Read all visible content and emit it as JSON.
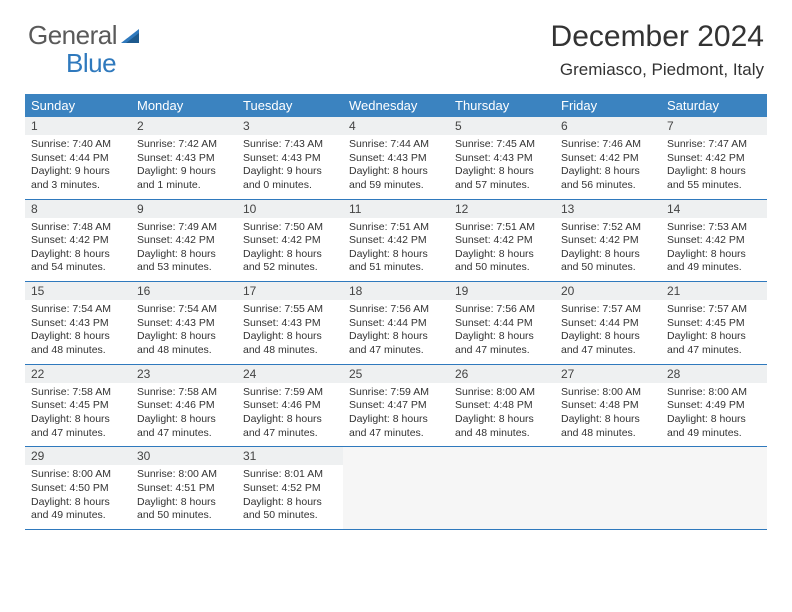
{
  "logo": {
    "general": "General",
    "blue": "Blue"
  },
  "title": "December 2024",
  "location": "Gremiasco, Piedmont, Italy",
  "colors": {
    "header_bg": "#3b83c0",
    "header_text": "#ffffff",
    "daynum_bg": "#eef0f1",
    "rule": "#2f79bd",
    "logo_gray": "#5a5a5a",
    "logo_blue": "#2f79bd"
  },
  "weekdays": [
    "Sunday",
    "Monday",
    "Tuesday",
    "Wednesday",
    "Thursday",
    "Friday",
    "Saturday"
  ],
  "weeks": [
    [
      {
        "n": "1",
        "sunrise": "Sunrise: 7:40 AM",
        "sunset": "Sunset: 4:44 PM",
        "daylight": "Daylight: 9 hours and 3 minutes."
      },
      {
        "n": "2",
        "sunrise": "Sunrise: 7:42 AM",
        "sunset": "Sunset: 4:43 PM",
        "daylight": "Daylight: 9 hours and 1 minute."
      },
      {
        "n": "3",
        "sunrise": "Sunrise: 7:43 AM",
        "sunset": "Sunset: 4:43 PM",
        "daylight": "Daylight: 9 hours and 0 minutes."
      },
      {
        "n": "4",
        "sunrise": "Sunrise: 7:44 AM",
        "sunset": "Sunset: 4:43 PM",
        "daylight": "Daylight: 8 hours and 59 minutes."
      },
      {
        "n": "5",
        "sunrise": "Sunrise: 7:45 AM",
        "sunset": "Sunset: 4:43 PM",
        "daylight": "Daylight: 8 hours and 57 minutes."
      },
      {
        "n": "6",
        "sunrise": "Sunrise: 7:46 AM",
        "sunset": "Sunset: 4:42 PM",
        "daylight": "Daylight: 8 hours and 56 minutes."
      },
      {
        "n": "7",
        "sunrise": "Sunrise: 7:47 AM",
        "sunset": "Sunset: 4:42 PM",
        "daylight": "Daylight: 8 hours and 55 minutes."
      }
    ],
    [
      {
        "n": "8",
        "sunrise": "Sunrise: 7:48 AM",
        "sunset": "Sunset: 4:42 PM",
        "daylight": "Daylight: 8 hours and 54 minutes."
      },
      {
        "n": "9",
        "sunrise": "Sunrise: 7:49 AM",
        "sunset": "Sunset: 4:42 PM",
        "daylight": "Daylight: 8 hours and 53 minutes."
      },
      {
        "n": "10",
        "sunrise": "Sunrise: 7:50 AM",
        "sunset": "Sunset: 4:42 PM",
        "daylight": "Daylight: 8 hours and 52 minutes."
      },
      {
        "n": "11",
        "sunrise": "Sunrise: 7:51 AM",
        "sunset": "Sunset: 4:42 PM",
        "daylight": "Daylight: 8 hours and 51 minutes."
      },
      {
        "n": "12",
        "sunrise": "Sunrise: 7:51 AM",
        "sunset": "Sunset: 4:42 PM",
        "daylight": "Daylight: 8 hours and 50 minutes."
      },
      {
        "n": "13",
        "sunrise": "Sunrise: 7:52 AM",
        "sunset": "Sunset: 4:42 PM",
        "daylight": "Daylight: 8 hours and 50 minutes."
      },
      {
        "n": "14",
        "sunrise": "Sunrise: 7:53 AM",
        "sunset": "Sunset: 4:42 PM",
        "daylight": "Daylight: 8 hours and 49 minutes."
      }
    ],
    [
      {
        "n": "15",
        "sunrise": "Sunrise: 7:54 AM",
        "sunset": "Sunset: 4:43 PM",
        "daylight": "Daylight: 8 hours and 48 minutes."
      },
      {
        "n": "16",
        "sunrise": "Sunrise: 7:54 AM",
        "sunset": "Sunset: 4:43 PM",
        "daylight": "Daylight: 8 hours and 48 minutes."
      },
      {
        "n": "17",
        "sunrise": "Sunrise: 7:55 AM",
        "sunset": "Sunset: 4:43 PM",
        "daylight": "Daylight: 8 hours and 48 minutes."
      },
      {
        "n": "18",
        "sunrise": "Sunrise: 7:56 AM",
        "sunset": "Sunset: 4:44 PM",
        "daylight": "Daylight: 8 hours and 47 minutes."
      },
      {
        "n": "19",
        "sunrise": "Sunrise: 7:56 AM",
        "sunset": "Sunset: 4:44 PM",
        "daylight": "Daylight: 8 hours and 47 minutes."
      },
      {
        "n": "20",
        "sunrise": "Sunrise: 7:57 AM",
        "sunset": "Sunset: 4:44 PM",
        "daylight": "Daylight: 8 hours and 47 minutes."
      },
      {
        "n": "21",
        "sunrise": "Sunrise: 7:57 AM",
        "sunset": "Sunset: 4:45 PM",
        "daylight": "Daylight: 8 hours and 47 minutes."
      }
    ],
    [
      {
        "n": "22",
        "sunrise": "Sunrise: 7:58 AM",
        "sunset": "Sunset: 4:45 PM",
        "daylight": "Daylight: 8 hours and 47 minutes."
      },
      {
        "n": "23",
        "sunrise": "Sunrise: 7:58 AM",
        "sunset": "Sunset: 4:46 PM",
        "daylight": "Daylight: 8 hours and 47 minutes."
      },
      {
        "n": "24",
        "sunrise": "Sunrise: 7:59 AM",
        "sunset": "Sunset: 4:46 PM",
        "daylight": "Daylight: 8 hours and 47 minutes."
      },
      {
        "n": "25",
        "sunrise": "Sunrise: 7:59 AM",
        "sunset": "Sunset: 4:47 PM",
        "daylight": "Daylight: 8 hours and 47 minutes."
      },
      {
        "n": "26",
        "sunrise": "Sunrise: 8:00 AM",
        "sunset": "Sunset: 4:48 PM",
        "daylight": "Daylight: 8 hours and 48 minutes."
      },
      {
        "n": "27",
        "sunrise": "Sunrise: 8:00 AM",
        "sunset": "Sunset: 4:48 PM",
        "daylight": "Daylight: 8 hours and 48 minutes."
      },
      {
        "n": "28",
        "sunrise": "Sunrise: 8:00 AM",
        "sunset": "Sunset: 4:49 PM",
        "daylight": "Daylight: 8 hours and 49 minutes."
      }
    ],
    [
      {
        "n": "29",
        "sunrise": "Sunrise: 8:00 AM",
        "sunset": "Sunset: 4:50 PM",
        "daylight": "Daylight: 8 hours and 49 minutes."
      },
      {
        "n": "30",
        "sunrise": "Sunrise: 8:00 AM",
        "sunset": "Sunset: 4:51 PM",
        "daylight": "Daylight: 8 hours and 50 minutes."
      },
      {
        "n": "31",
        "sunrise": "Sunrise: 8:01 AM",
        "sunset": "Sunset: 4:52 PM",
        "daylight": "Daylight: 8 hours and 50 minutes."
      },
      null,
      null,
      null,
      null
    ]
  ]
}
